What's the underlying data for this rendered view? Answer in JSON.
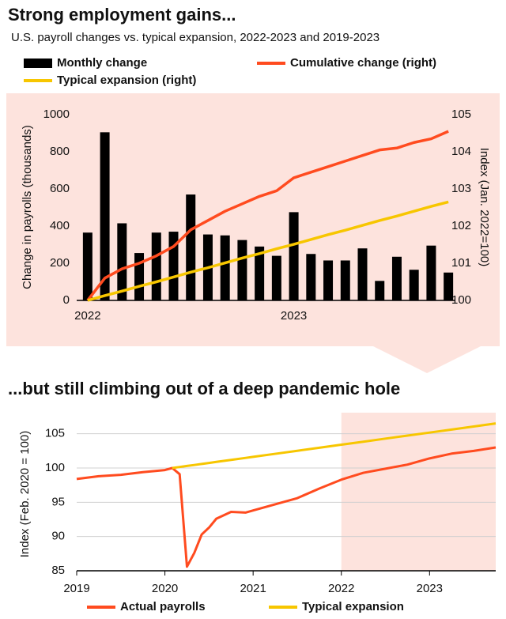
{
  "chart_data": [
    {
      "type": "bar",
      "title": "Strong employment gains...",
      "subtitle": "U.S. payroll changes vs. typical expansion, 2022-2023 and 2019-2023",
      "y_label": "Change in payrolls (thousands)",
      "y2_label": "Index (Jan. 2022=100)",
      "categories": [
        "2022",
        null,
        null,
        null,
        null,
        null,
        null,
        null,
        null,
        null,
        null,
        null,
        "2023",
        null,
        null,
        null,
        null,
        null,
        null,
        null,
        null,
        null
      ],
      "series": [
        {
          "name": "Monthly change",
          "type": "bar",
          "color": "#000000",
          "values": [
            365,
            905,
            415,
            255,
            365,
            370,
            570,
            355,
            350,
            325,
            290,
            240,
            475,
            250,
            215,
            215,
            280,
            105,
            235,
            165,
            295,
            150
          ]
        },
        {
          "name": "Cumulative change (right)",
          "type": "line",
          "axis": "y2",
          "color": "#ff4b1f",
          "values": [
            100,
            100.6,
            100.85,
            101.0,
            101.2,
            101.45,
            101.9,
            102.15,
            102.4,
            102.6,
            102.8,
            102.95,
            103.3,
            103.45,
            103.6,
            103.75,
            103.9,
            104.05,
            104.1,
            104.25,
            104.35,
            104.55
          ]
        },
        {
          "name": "Typical expansion (right)",
          "type": "line",
          "axis": "y2",
          "color": "#f7c600",
          "values": [
            100,
            100.13,
            100.25,
            100.38,
            100.5,
            100.63,
            100.76,
            100.88,
            101.01,
            101.14,
            101.26,
            101.39,
            101.51,
            101.64,
            101.77,
            101.89,
            102.02,
            102.15,
            102.27,
            102.4,
            102.53,
            102.65
          ]
        }
      ],
      "ylim": [
        0,
        1000
      ],
      "yticks": [
        0,
        200,
        400,
        600,
        800,
        1000
      ],
      "y2lim": [
        100,
        105
      ],
      "y2ticks": [
        100,
        101,
        102,
        103,
        104,
        105
      ],
      "grid": false
    },
    {
      "type": "line",
      "title": "...but still climbing out of a deep pandemic hole",
      "y_label": "Index (Feb. 2020 = 100)",
      "x": [
        2019.0,
        2019.25,
        2019.5,
        2019.75,
        2020.0,
        2020.083,
        2020.167,
        2020.25,
        2020.333,
        2020.417,
        2020.5,
        2020.583,
        2020.75,
        2020.917,
        2021.0,
        2021.25,
        2021.5,
        2021.75,
        2022.0,
        2022.25,
        2022.5,
        2022.75,
        2023.0,
        2023.25,
        2023.5,
        2023.75
      ],
      "series": [
        {
          "name": "Actual payrolls",
          "color": "#ff4b1f",
          "values": [
            98.4,
            98.8,
            99.0,
            99.4,
            99.7,
            100.0,
            99.1,
            85.6,
            87.6,
            90.3,
            91.3,
            92.6,
            93.6,
            93.5,
            93.8,
            94.7,
            95.6,
            97.0,
            98.3,
            99.3,
            99.9,
            100.5,
            101.4,
            102.1,
            102.5,
            103.0
          ]
        },
        {
          "name": "Typical expansion",
          "color": "#f7c600",
          "values": [
            null,
            null,
            null,
            null,
            null,
            100.0,
            100.15,
            100.3,
            100.44,
            100.59,
            100.74,
            100.89,
            101.18,
            101.48,
            101.63,
            102.07,
            102.51,
            102.96,
            103.4,
            103.84,
            104.29,
            104.73,
            105.17,
            105.61,
            106.06,
            106.5
          ]
        }
      ],
      "xlim": [
        2019,
        2023.75
      ],
      "xticks": [
        2019,
        2020,
        2021,
        2022,
        2023
      ],
      "ylim": [
        85,
        107.5
      ],
      "yticks": [
        85,
        90,
        95,
        100,
        105
      ],
      "shaded_range": [
        2022,
        2023.75
      ],
      "grid": true
    }
  ]
}
